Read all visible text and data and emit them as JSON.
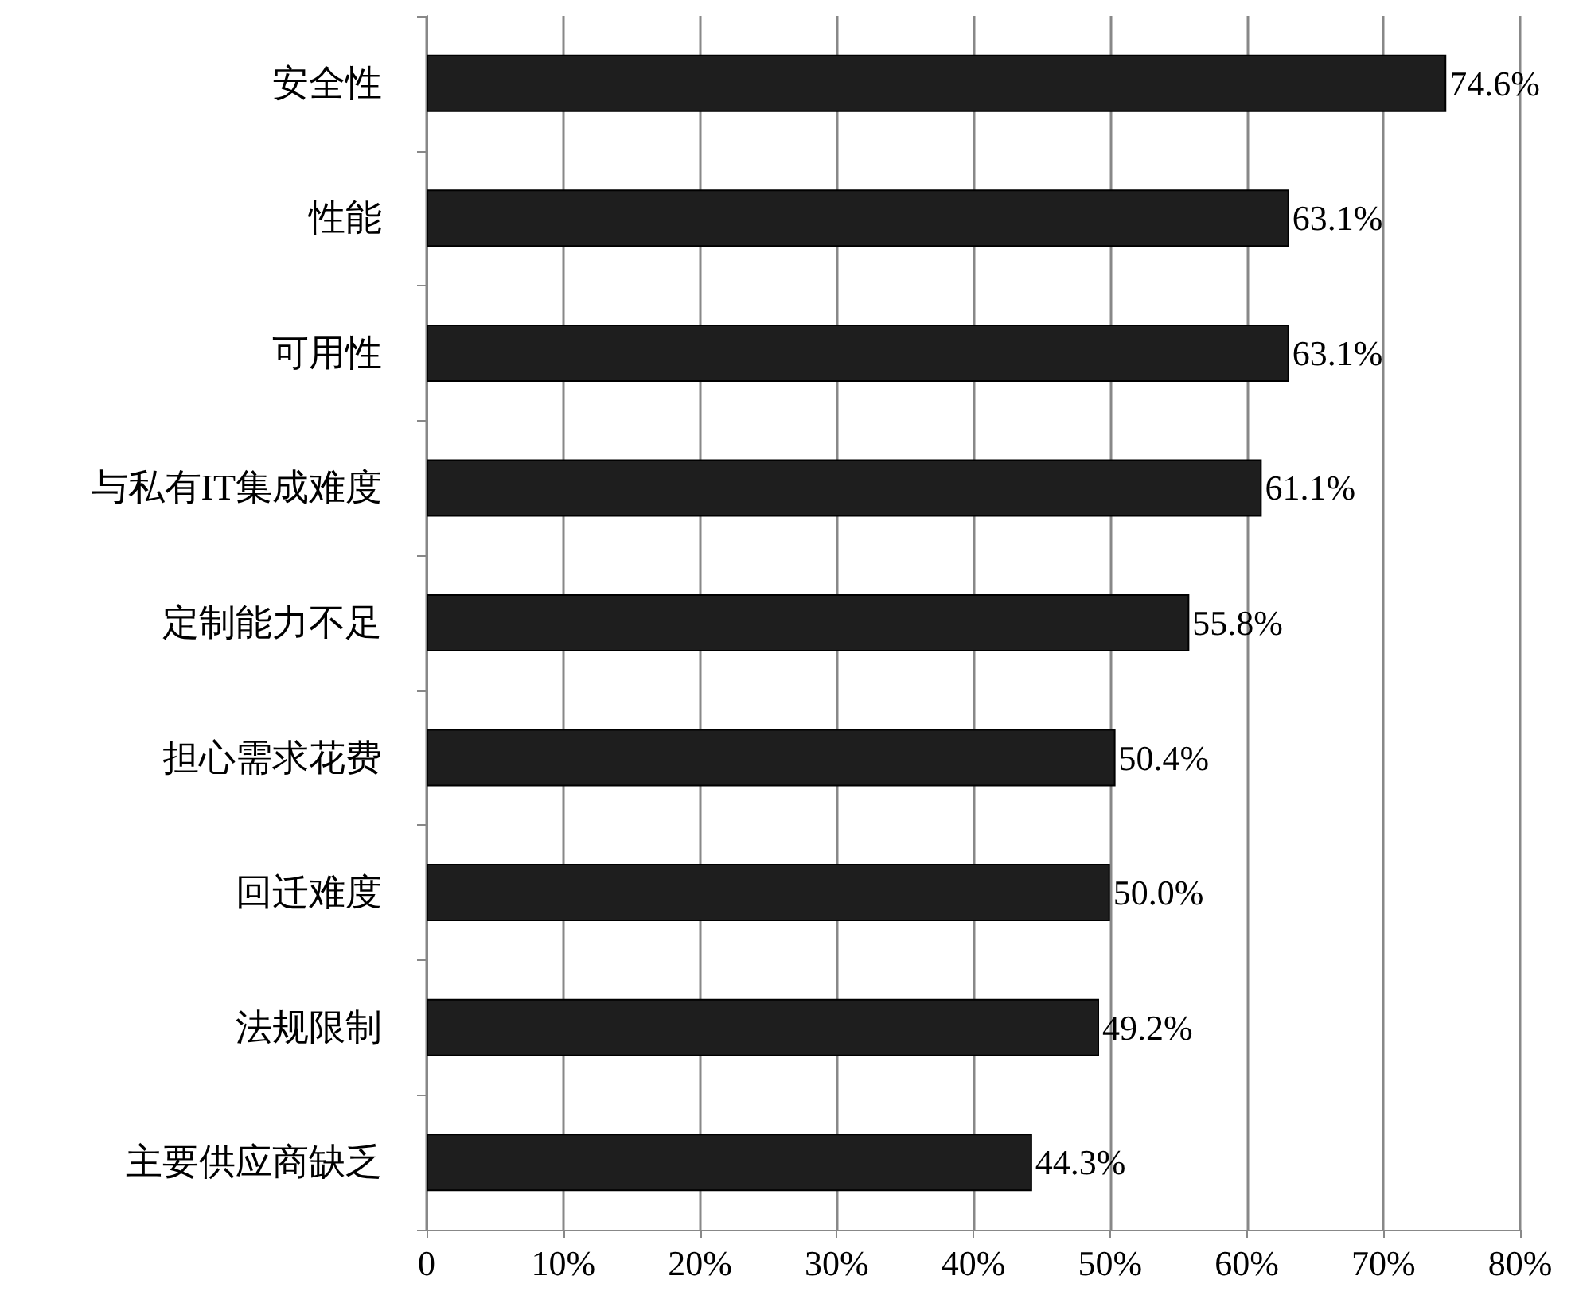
{
  "chart_data": {
    "type": "bar",
    "orientation": "horizontal",
    "categories": [
      "安全性",
      "性能",
      "可用性",
      "与私有IT集成难度",
      "定制能力不足",
      "担心需求花费",
      "回迁难度",
      "法规限制",
      "主要供应商缺乏"
    ],
    "values": [
      74.6,
      63.1,
      63.1,
      61.1,
      55.8,
      50.4,
      50.0,
      49.2,
      44.3
    ],
    "value_labels": [
      "74.6%",
      "63.1%",
      "63.1%",
      "61.1%",
      "55.8%",
      "50.4%",
      "50.0%",
      "49.2%",
      "44.3%"
    ],
    "color": "#1e1e1e",
    "xlim": [
      0,
      80
    ],
    "xticks": [
      0,
      {
        "value": 10,
        "label": "10%"
      },
      {
        "value": 20,
        "label": "20%"
      },
      {
        "value": 30,
        "label": "30%"
      },
      {
        "value": 40,
        "label": "40%"
      },
      {
        "value": 50,
        "label": "50%"
      },
      {
        "value": 60,
        "label": "60%"
      },
      {
        "value": 70,
        "label": "70%"
      },
      {
        "value": 80,
        "label": "80%"
      }
    ],
    "grid": "x"
  }
}
